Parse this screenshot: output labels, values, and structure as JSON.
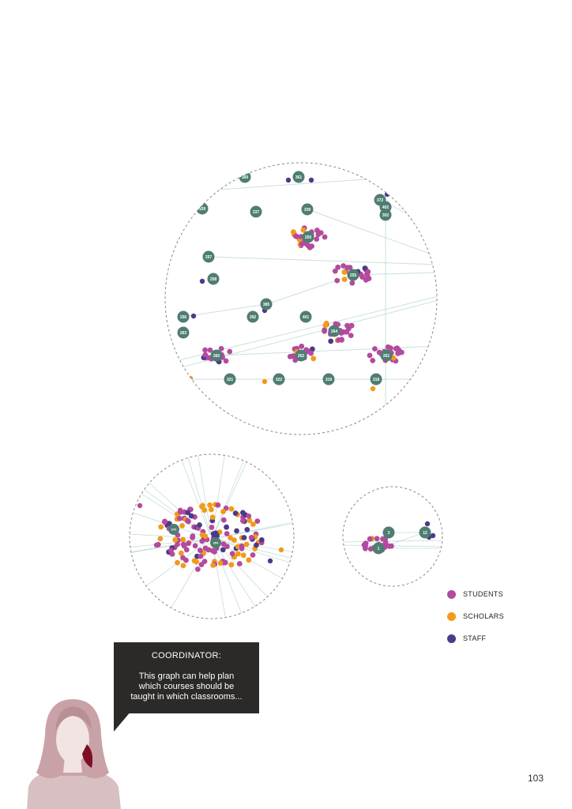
{
  "legend": [
    {
      "label": "STUDENTS",
      "color": "#b44a9e"
    },
    {
      "label": "SCHOLARS",
      "color": "#f29a19"
    },
    {
      "label": "STAFF",
      "color": "#4a3b8a"
    }
  ],
  "colors": {
    "node": "#4f7d72",
    "edge": "#9cc9bf",
    "boundary": "#888888",
    "bubble_bg": "#2b2a29"
  },
  "speech_bubble": {
    "speaker": "COORDINATOR:",
    "lines": [
      "This graph can help plan",
      "which courses should be",
      "taught in which classrooms..."
    ]
  },
  "page_number": "103",
  "clusters": {
    "large": {
      "nodes": [
        "360",
        "361",
        "372",
        "402",
        "302",
        "339",
        "337",
        "159",
        "250",
        "257",
        "258",
        "255",
        "385",
        "392",
        "401",
        "256",
        "264",
        "263",
        "260",
        "262",
        "261",
        "321",
        "322",
        "319",
        "318"
      ]
    },
    "medium": {
      "nodes": [
        "370",
        "394"
      ]
    },
    "small": {
      "nodes": [
        "3",
        "1",
        "12"
      ]
    }
  }
}
